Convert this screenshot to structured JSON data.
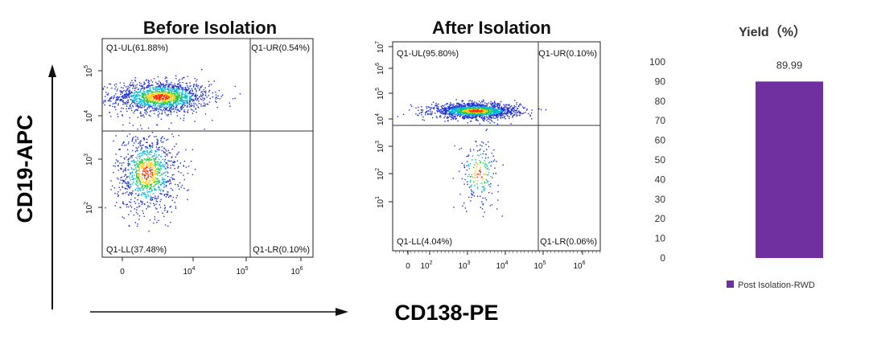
{
  "axis_titles": {
    "x": "CD138-PE",
    "y": "CD19-APC"
  },
  "chart_data": [
    {
      "type": "scatter",
      "title": "Before Isolation",
      "xlabel": "CD138-PE",
      "ylabel": "CD19-APC",
      "x_ticks": [
        "0",
        "10",
        "4",
        "10",
        "5",
        "10",
        "6"
      ],
      "x_tick_labels": [
        {
          "base": "0",
          "exp": ""
        },
        {
          "base": "10",
          "exp": "4"
        },
        {
          "base": "10",
          "exp": "5"
        },
        {
          "base": "10",
          "exp": "6"
        }
      ],
      "y_tick_labels": [
        {
          "base": "10",
          "exp": "2"
        },
        {
          "base": "10",
          "exp": "3"
        },
        {
          "base": "10",
          "exp": "4"
        },
        {
          "base": "10",
          "exp": "5"
        }
      ],
      "quadrants": {
        "UL": "Q1-UL(61.88%)",
        "UR": "Q1-UR(0.54%)",
        "LL": "Q1-LL(37.48%)",
        "LR": "Q1-LR(0.10%)"
      },
      "quadrant_percent": {
        "UL": 61.88,
        "UR": 0.54,
        "LL": 37.48,
        "LR": 0.1
      },
      "populations": [
        {
          "cx": 2.8,
          "cy": 4.7,
          "sx": 0.55,
          "sy": 0.18,
          "n": 1500
        },
        {
          "cx": 2.5,
          "cy": 3.0,
          "sx": 0.35,
          "sy": 0.45,
          "n": 1000
        }
      ]
    },
    {
      "type": "scatter",
      "title": "After Isolation",
      "xlabel": "CD138-PE",
      "ylabel": "CD19-APC",
      "x_tick_labels": [
        {
          "base": "0",
          "exp": ""
        },
        {
          "base": "10",
          "exp": "2"
        },
        {
          "base": "10",
          "exp": "3"
        },
        {
          "base": "10",
          "exp": "4"
        },
        {
          "base": "10",
          "exp": "5"
        },
        {
          "base": "10",
          "exp": "6"
        }
      ],
      "y_tick_labels": [
        {
          "base": "10",
          "exp": "1"
        },
        {
          "base": "10",
          "exp": "2"
        },
        {
          "base": "10",
          "exp": "3"
        },
        {
          "base": "10",
          "exp": "4"
        },
        {
          "base": "10",
          "exp": "5"
        },
        {
          "base": "10",
          "exp": "6"
        },
        {
          "base": "10",
          "exp": "7"
        }
      ],
      "quadrants": {
        "UL": "Q1-UL(95.80%)",
        "UR": "Q1-UR(0.10%)",
        "LL": "Q1-LL(4.04%)",
        "LR": "Q1-LR(0.06%)"
      },
      "quadrant_percent": {
        "UL": 95.8,
        "UR": 0.1,
        "LL": 4.04,
        "LR": 0.06
      },
      "populations": [
        {
          "cx": 3.0,
          "cy": 5.0,
          "sx": 0.55,
          "sy": 0.12,
          "n": 1600
        },
        {
          "cx": 3.1,
          "cy": 3.0,
          "sx": 0.25,
          "sy": 0.55,
          "n": 200
        }
      ]
    },
    {
      "type": "bar",
      "title": "Yield（%）",
      "categories": [
        "Post Isolation-RWD"
      ],
      "values": [
        89.99
      ],
      "value_labels": [
        "89.99"
      ],
      "y_ticks": [
        0,
        10,
        20,
        30,
        40,
        50,
        60,
        70,
        80,
        90,
        100
      ],
      "ylim": [
        0,
        100
      ],
      "legend": [
        {
          "name": "Post Isolation-RWD",
          "color": "#7030a0"
        }
      ],
      "legend_position": "bottom",
      "bar_color": "#7030a0"
    }
  ]
}
